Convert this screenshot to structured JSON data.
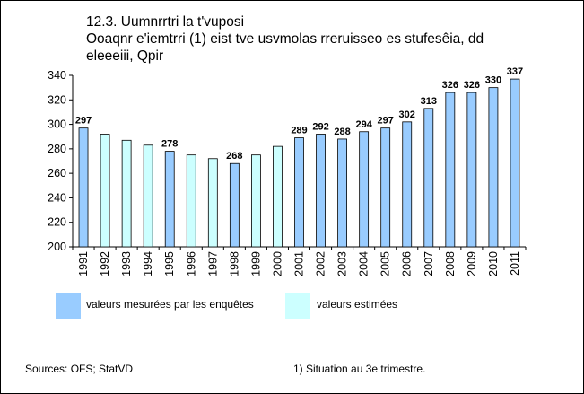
{
  "title": {
    "line1": "12.3. Uumnrrtri la t'vuposi",
    "line2": "Ooaqnr e'iemtrri (1) eist tve usvmolas rreruisseo es stufesêia, dd",
    "line3": "eleeeiii, Qpir"
  },
  "legend": {
    "measured_label": "valeurs mesurées par les enquêtes",
    "estimated_label": "valeurs estimées"
  },
  "footer": {
    "sources": "Sources:  OFS; StatVD",
    "note": "1) Situation au 3e trimestre."
  },
  "colors": {
    "measured": "#99CCFF",
    "estimated": "#CCFFFF",
    "axis": "#000000"
  },
  "chart_data": {
    "type": "bar",
    "categories": [
      "1991",
      "1992",
      "1993",
      "1994",
      "1995",
      "1996",
      "1997",
      "1998",
      "1999",
      "2000",
      "2001",
      "2002",
      "2003",
      "2004",
      "2005",
      "2006",
      "2007",
      "2008",
      "2009",
      "2010",
      "2011"
    ],
    "values": [
      297,
      292,
      287,
      283,
      278,
      275,
      272,
      268,
      275,
      282,
      289,
      292,
      288,
      294,
      297,
      302,
      313,
      326,
      326,
      330,
      337
    ],
    "kinds": [
      "measured",
      "estimated",
      "estimated",
      "estimated",
      "measured",
      "estimated",
      "estimated",
      "measured",
      "estimated",
      "estimated",
      "measured",
      "measured",
      "measured",
      "measured",
      "measured",
      "measured",
      "measured",
      "measured",
      "measured",
      "measured",
      "measured"
    ],
    "data_labels": [
      "297",
      "",
      "",
      "",
      "278",
      "",
      "",
      "268",
      "",
      "",
      "289",
      "292",
      "288",
      "294",
      "297",
      "302",
      "313",
      "326",
      "326",
      "330",
      "337"
    ],
    "ylim": [
      200,
      340
    ],
    "yticks": [
      200,
      220,
      240,
      260,
      280,
      300,
      320,
      340
    ],
    "ytick_labels": [
      "200",
      "220",
      "240",
      "260",
      "280",
      "300",
      "320",
      "340"
    ],
    "xlabel": "",
    "ylabel": "",
    "grid": false,
    "legend_position": "bottom"
  }
}
